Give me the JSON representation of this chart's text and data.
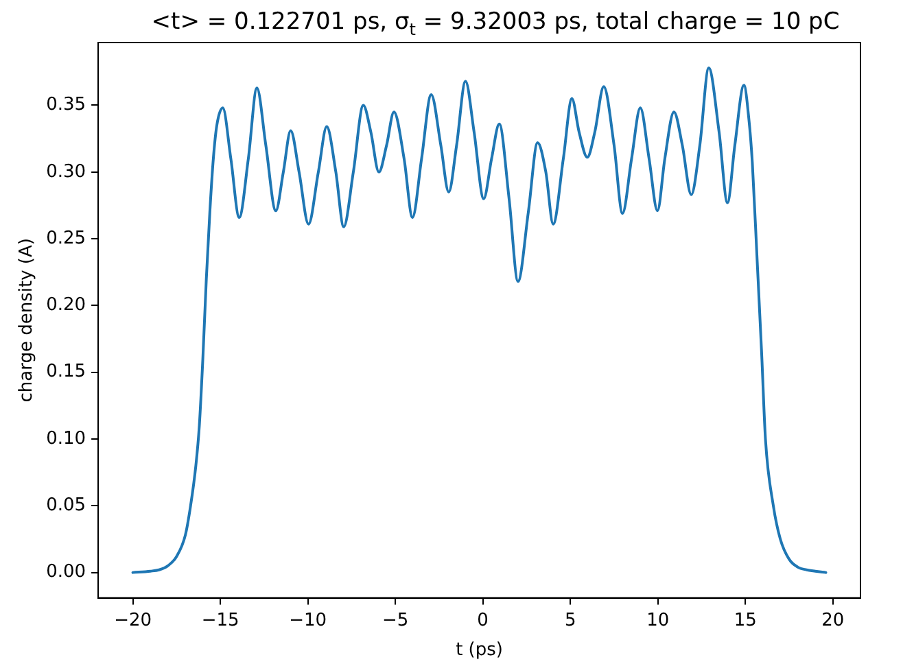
{
  "chart_data": {
    "type": "line",
    "title": "<t> = 0.122701 ps, σ$_{t}$ = 9.32003 ps, total charge = 10 pC",
    "xlabel": "t (ps)",
    "ylabel": "charge density (A)",
    "series": [
      {
        "color": "#1f77b4",
        "x": [
          -20,
          -19,
          -18.5,
          -18,
          -17.5,
          -17,
          -16.7,
          -16.4,
          -16.2,
          -16,
          -15.8,
          -15.6,
          -15.4,
          -15.2,
          -14.86,
          -14.4,
          -13.92,
          -13.4,
          -12.91,
          -12.4,
          -11.83,
          -11.4,
          -10.98,
          -10.5,
          -9.96,
          -9.4,
          -8.92,
          -8.4,
          -7.95,
          -7.4,
          -6.83,
          -6.4,
          -5.94,
          -5.5,
          -5.08,
          -4.5,
          -4.02,
          -3.5,
          -2.95,
          -2.4,
          -1.95,
          -1.5,
          -0.99,
          -0.5,
          0.05,
          0.5,
          0.94,
          1.5,
          2.01,
          2.6,
          3.13,
          3.6,
          4.02,
          4.6,
          5.09,
          5.5,
          5.97,
          6.4,
          6.91,
          7.5,
          7.98,
          8.5,
          9.0,
          9.5,
          9.98,
          10.4,
          10.92,
          11.4,
          11.91,
          12.4,
          12.91,
          13.5,
          13.98,
          14.4,
          14.92,
          15.2,
          15.4,
          15.66,
          15.93,
          16.15,
          16.6,
          17,
          17.5,
          18,
          18.5,
          19,
          19.6
        ],
        "values": [
          0,
          0.001,
          0.002,
          0.005,
          0.012,
          0.028,
          0.05,
          0.08,
          0.11,
          0.16,
          0.22,
          0.27,
          0.31,
          0.335,
          0.348,
          0.31,
          0.266,
          0.31,
          0.363,
          0.32,
          0.271,
          0.3,
          0.331,
          0.3,
          0.261,
          0.3,
          0.334,
          0.3,
          0.259,
          0.3,
          0.35,
          0.33,
          0.3,
          0.32,
          0.345,
          0.31,
          0.266,
          0.31,
          0.358,
          0.32,
          0.285,
          0.32,
          0.368,
          0.33,
          0.28,
          0.31,
          0.336,
          0.28,
          0.218,
          0.27,
          0.322,
          0.3,
          0.261,
          0.31,
          0.355,
          0.33,
          0.311,
          0.33,
          0.364,
          0.32,
          0.269,
          0.31,
          0.348,
          0.31,
          0.271,
          0.31,
          0.345,
          0.32,
          0.283,
          0.32,
          0.378,
          0.33,
          0.277,
          0.32,
          0.365,
          0.34,
          0.307,
          0.238,
          0.165,
          0.1,
          0.05,
          0.025,
          0.01,
          0.004,
          0.002,
          0.001,
          0
        ]
      }
    ],
    "xlim": [
      -21.98,
      21.58
    ],
    "ylim": [
      -0.019,
      0.397
    ],
    "xticks": [
      {
        "value": -20,
        "label": "−20"
      },
      {
        "value": -15,
        "label": "−15"
      },
      {
        "value": -10,
        "label": "−10"
      },
      {
        "value": -5,
        "label": "−5"
      },
      0,
      5,
      10,
      15,
      20
    ],
    "yticks": [
      {
        "value": 0,
        "label": "0.00"
      },
      {
        "value": 0.05,
        "label": "0.05"
      },
      {
        "value": 0.1,
        "label": "0.10"
      },
      {
        "value": 0.15,
        "label": "0.15"
      },
      {
        "value": 0.2,
        "label": "0.20"
      },
      {
        "value": 0.25,
        "label": "0.25"
      },
      {
        "value": 0.3,
        "label": "0.30"
      },
      {
        "value": 0.35,
        "label": "0.35"
      }
    ],
    "marker": "none",
    "line_style": "solid"
  }
}
